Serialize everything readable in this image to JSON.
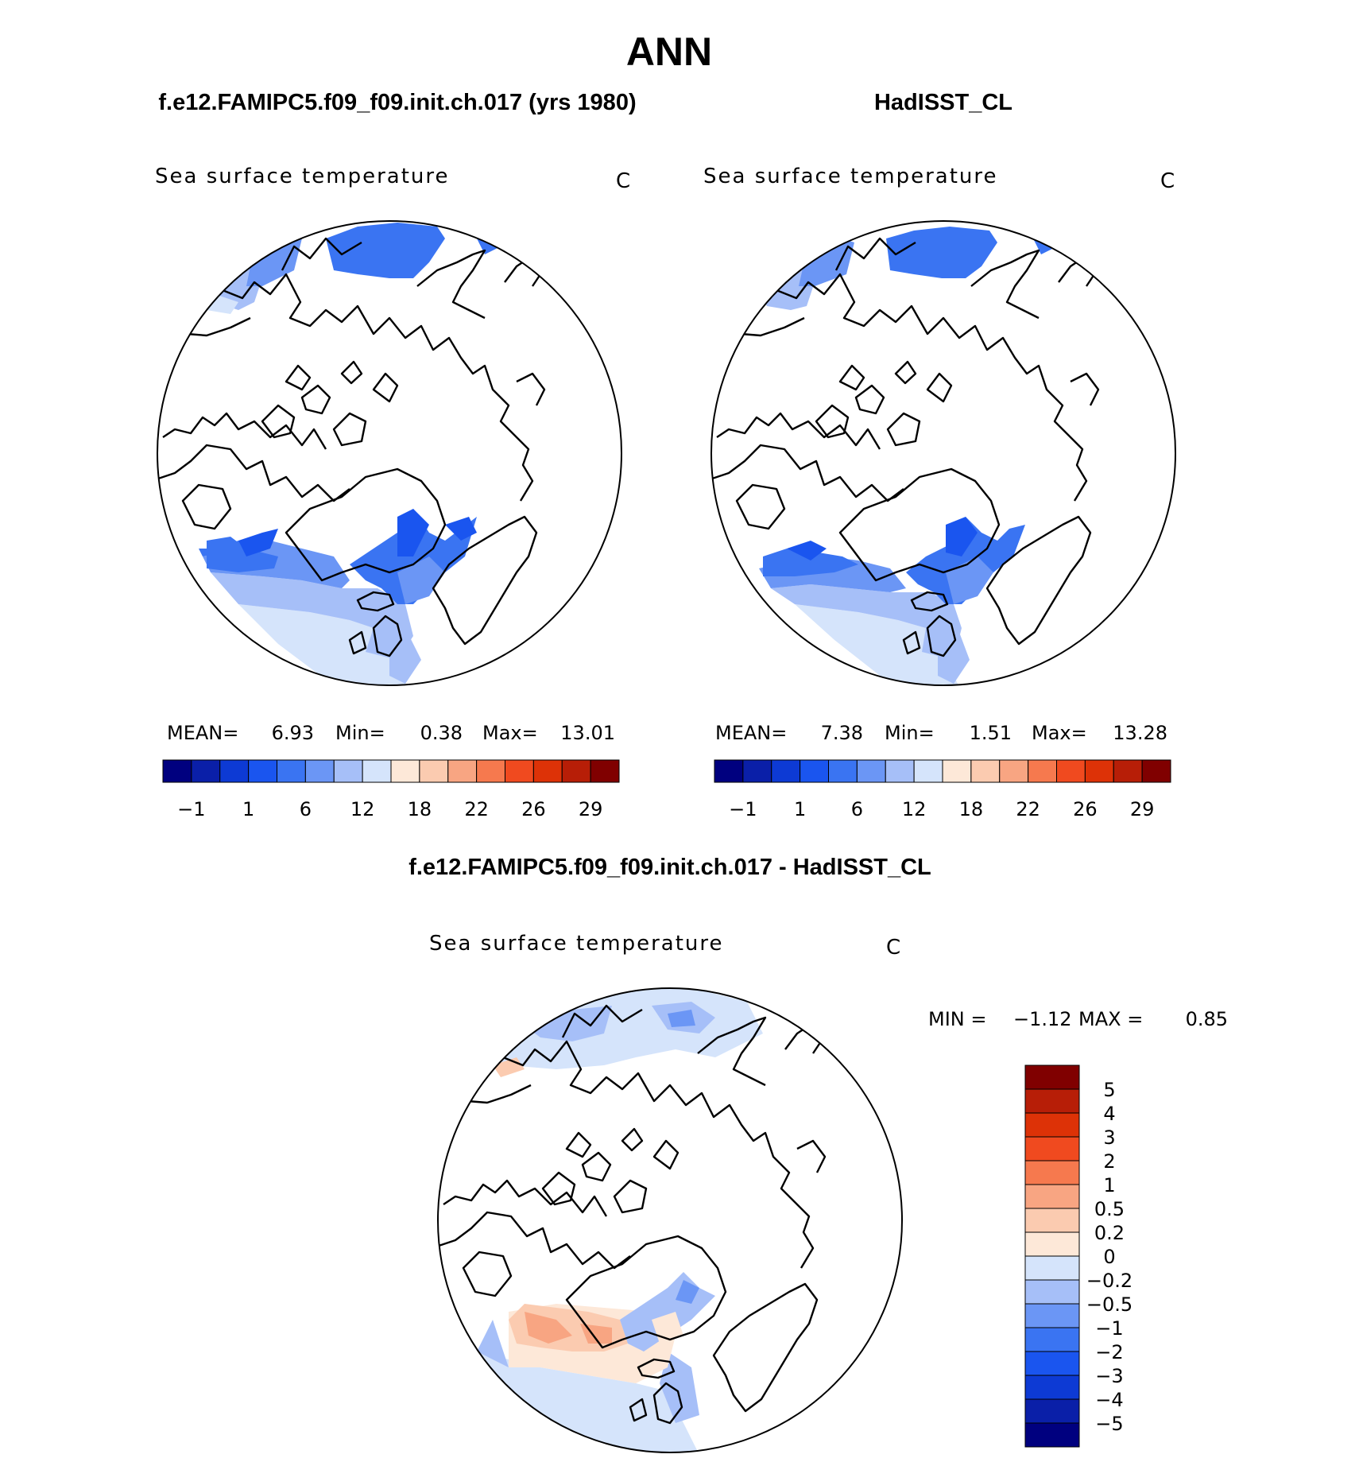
{
  "figure": {
    "title": "ANN",
    "left_header": "f.e12.FAMIPC5.f09_f09.init.ch.017 (yrs 1980)",
    "right_header": "HadISST_CL",
    "diff_header": "f.e12.FAMIPC5.f09_f09.init.ch.017 - HadISST_CL"
  },
  "panels": {
    "model": {
      "variable": "Sea surface temperature",
      "units": "C",
      "mean_label": "MEAN=",
      "mean": "6.93",
      "min_label": "Min=",
      "min": "0.38",
      "max_label": "Max=",
      "max": "13.01"
    },
    "obs": {
      "variable": "Sea surface temperature",
      "units": "C",
      "mean_label": "MEAN=",
      "mean": "7.38",
      "min_label": "Min=",
      "min": "1.51",
      "max_label": "Max=",
      "max": "13.28"
    },
    "diff": {
      "variable": "Sea surface temperature",
      "units": "C",
      "min_label": "MIN =",
      "min": "−1.12",
      "max_label": "MAX =",
      "max": "0.85"
    }
  },
  "colorbars": {
    "abs": {
      "colors": [
        "#00007f",
        "#0a1fa8",
        "#0d3ad4",
        "#1a55ef",
        "#3a74f2",
        "#6b96f5",
        "#a6bff8",
        "#d5e4fb",
        "#fde8d8",
        "#fbcbb0",
        "#f8a582",
        "#f6794e",
        "#f04a1f",
        "#dd3207",
        "#b71e07",
        "#800000"
      ],
      "tick_labels": [
        "−1",
        "1",
        "6",
        "12",
        "18",
        "22",
        "26",
        "29"
      ]
    },
    "diff": {
      "colors": [
        "#800000",
        "#b71e07",
        "#dd3207",
        "#f04a1f",
        "#f6794e",
        "#f8a582",
        "#fbcbb0",
        "#fde8d8",
        "#d5e4fb",
        "#a6bff8",
        "#6b96f5",
        "#3a74f2",
        "#1a55ef",
        "#0d3ad4",
        "#0a1fa8",
        "#00007f"
      ],
      "tick_labels": [
        "5",
        "4",
        "3",
        "2",
        "1",
        "0.5",
        "0.2",
        "0",
        "−0.2",
        "−0.5",
        "−1",
        "−2",
        "−3",
        "−4",
        "−5"
      ]
    }
  }
}
